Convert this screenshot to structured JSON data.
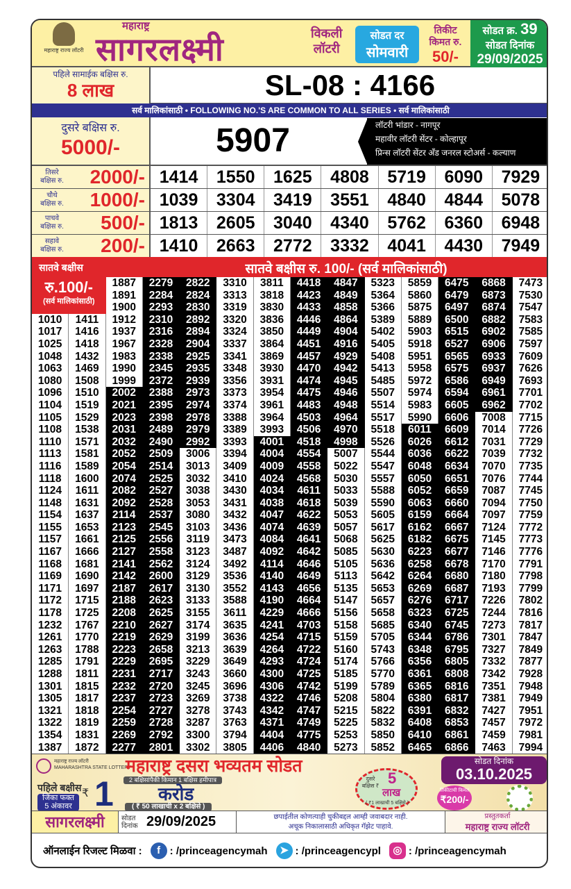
{
  "header": {
    "logo_caption": "महाराष्ट्र राज्य लॉटरी",
    "state": "महाराष्ट्र",
    "title": "सागरलक्ष्मी",
    "weekly_1": "विकली",
    "weekly_2": "लॉटरी",
    "draw_day_label": "सोडत दर",
    "draw_day": "सोमवारी",
    "ticket_label_1": "तिकीट",
    "ticket_label_2": "किमत रु.",
    "ticket_price": "50/-",
    "draw_no_label": "सोडत क्र.",
    "draw_no": "39",
    "draw_date_label": "सोडत दिनांक",
    "draw_date": "29/09/2025"
  },
  "first_prize": {
    "label": "पहिले सामाईक बक्षिस रु.",
    "amount": "8 लाख",
    "number": "SL-08 : 4166"
  },
  "common_band": "सर्व मालिकांसाठी  •  FOLLOWING NO.'S ARE COMMON TO ALL SERIES  •  सर्व मालिकांसाठी",
  "second_prize": {
    "label": "दुसरे बक्षिस रु.",
    "amount": "5000/-",
    "number": "5907",
    "sellers": [
      "लॉटरी भांडार - नागपूर",
      "महावीर लॉटरी सेंटर - कोल्हापूर",
      "प्रिन्स लॉटरी सेंटर अँड जनरल स्टोअर्स - कल्याण"
    ]
  },
  "prizes": [
    {
      "label_1": "तिसरे",
      "label_2": "बक्षिस रु.",
      "amount": "2000/-",
      "numbers": [
        "1414",
        "1550",
        "1625",
        "4808",
        "5719",
        "6090",
        "7929"
      ]
    },
    {
      "label_1": "चौथे",
      "label_2": "बक्षिस रु.",
      "amount": "1000/-",
      "numbers": [
        "1039",
        "3304",
        "3419",
        "3551",
        "4840",
        "4844",
        "5078"
      ]
    },
    {
      "label_1": "पाचवे",
      "label_2": "बक्षिस रु.",
      "amount": "500/-",
      "numbers": [
        "1813",
        "2605",
        "3040",
        "4340",
        "5762",
        "6360",
        "6948"
      ]
    },
    {
      "label_1": "सहावे",
      "label_2": "बक्षिस रु.",
      "amount": "200/-",
      "numbers": [
        "1410",
        "2663",
        "2772",
        "3332",
        "4041",
        "4430",
        "7949"
      ]
    }
  ],
  "seventh_prize": {
    "left_label": "सातवे बक्षीस",
    "heading": "सातवे बक्षीस रु. 100/-  (सर्व मालिकांसाठी)",
    "box_amount": "रु.100/-",
    "box_note": "(सर्व मालिकांसाठी)",
    "columns": [
      [
        "1010",
        "1017",
        "1025",
        "1048",
        "1063",
        "1080",
        "1096",
        "1104",
        "1105",
        "1108",
        "1110",
        "1113",
        "1116",
        "1118",
        "1124",
        "1148",
        "1154",
        "1155",
        "1157",
        "1167",
        "1168",
        "1169",
        "1171",
        "1172",
        "1178",
        "1232",
        "1261",
        "1263",
        "1285",
        "1288",
        "1301",
        "1305",
        "1321",
        "1322",
        "1354",
        "1387"
      ],
      [
        "1411",
        "1416",
        "1418",
        "1432",
        "1469",
        "1508",
        "1510",
        "1519",
        "1529",
        "1538",
        "1571",
        "1581",
        "1589",
        "1600",
        "1611",
        "1631",
        "1637",
        "1653",
        "1661",
        "1666",
        "1681",
        "1690",
        "1697",
        "1715",
        "1725",
        "1767",
        "1770",
        "1788",
        "1791",
        "1811",
        "1815",
        "1817",
        "1818",
        "1819",
        "1831",
        "1872"
      ],
      [
        "1887",
        "1891",
        "1900",
        "1912",
        "1937",
        "1967",
        "1983",
        "1990",
        "1999",
        "2002",
        "2021",
        "2023",
        "2031",
        "2032",
        "2052",
        "2054",
        "2074",
        "2082",
        "2092",
        "2114",
        "2123",
        "2125",
        "2127",
        "2141",
        "2142",
        "2187",
        "2188",
        "2208",
        "2210",
        "2219",
        "2223",
        "2229",
        "2231",
        "2232",
        "2237",
        "2254",
        "2259",
        "2269",
        "2277"
      ],
      [
        "2279",
        "2284",
        "2293",
        "2310",
        "2316",
        "2328",
        "2338",
        "2345",
        "2372",
        "2388",
        "2395",
        "2398",
        "2489",
        "2490",
        "2509",
        "2514",
        "2525",
        "2527",
        "2528",
        "2537",
        "2545",
        "2556",
        "2558",
        "2562",
        "2600",
        "2617",
        "2623",
        "2625",
        "2627",
        "2629",
        "2658",
        "2695",
        "2717",
        "2720",
        "2723",
        "2727",
        "2728",
        "2792",
        "2801"
      ],
      [
        "2822",
        "2824",
        "2830",
        "2892",
        "2894",
        "2904",
        "2925",
        "2935",
        "2939",
        "2973",
        "2974",
        "2978",
        "2979",
        "2992",
        "3006",
        "3013",
        "3032",
        "3038",
        "3053",
        "3080",
        "3103",
        "3119",
        "3123",
        "3124",
        "3129",
        "3130",
        "3133",
        "3155",
        "3174",
        "3199",
        "3213",
        "3229",
        "3243",
        "3245",
        "3269",
        "3278",
        "3287",
        "3300",
        "3302"
      ],
      [
        "3310",
        "3313",
        "3319",
        "3320",
        "3324",
        "3337",
        "3341",
        "3348",
        "3356",
        "3373",
        "3374",
        "3388",
        "3389",
        "3393",
        "3394",
        "3409",
        "3410",
        "3430",
        "3431",
        "3432",
        "3436",
        "3473",
        "3487",
        "3492",
        "3536",
        "3552",
        "3588",
        "3611",
        "3635",
        "3636",
        "3639",
        "3649",
        "3660",
        "3696",
        "3738",
        "3743",
        "3763",
        "3794",
        "3805"
      ],
      [
        "3811",
        "3818",
        "3830",
        "3836",
        "3850",
        "3864",
        "3869",
        "3930",
        "3931",
        "3954",
        "3961",
        "3964",
        "3993",
        "4001",
        "4004",
        "4009",
        "4024",
        "4034",
        "4038",
        "4047",
        "4074",
        "4084",
        "4092",
        "4114",
        "4140",
        "4143",
        "4190",
        "4229",
        "4241",
        "4254",
        "4264",
        "4293",
        "4300",
        "4306",
        "4322",
        "4342",
        "4371",
        "4404",
        "4406"
      ],
      [
        "4418",
        "4423",
        "4433",
        "4446",
        "4449",
        "4451",
        "4457",
        "4470",
        "4474",
        "4475",
        "4483",
        "4503",
        "4506",
        "4518",
        "4554",
        "4558",
        "4568",
        "4611",
        "4618",
        "4622",
        "4639",
        "4641",
        "4642",
        "4646",
        "4649",
        "4656",
        "4664",
        "4666",
        "4703",
        "4715",
        "4722",
        "4724",
        "4725",
        "4742",
        "4746",
        "4747",
        "4749",
        "4775",
        "4840"
      ],
      [
        "4847",
        "4849",
        "4858",
        "4864",
        "4904",
        "4916",
        "4929",
        "4942",
        "4945",
        "4946",
        "4948",
        "4964",
        "4970",
        "4998",
        "5007",
        "5022",
        "5030",
        "5033",
        "5039",
        "5053",
        "5057",
        "5068",
        "5085",
        "5105",
        "5113",
        "5135",
        "5147",
        "5156",
        "5158",
        "5159",
        "5160",
        "5174",
        "5185",
        "5199",
        "5208",
        "5215",
        "5225",
        "5253",
        "5273"
      ],
      [
        "5323",
        "5364",
        "5366",
        "5389",
        "5402",
        "5405",
        "5408",
        "5413",
        "5485",
        "5507",
        "5514",
        "5517",
        "5518",
        "5526",
        "5544",
        "5547",
        "5557",
        "5588",
        "5590",
        "5605",
        "5617",
        "5625",
        "5630",
        "5636",
        "5642",
        "5653",
        "5657",
        "5658",
        "5685",
        "5705",
        "5743",
        "5766",
        "5770",
        "5789",
        "5804",
        "5822",
        "5832",
        "5850",
        "5852"
      ],
      [
        "5859",
        "5860",
        "5875",
        "5889",
        "5903",
        "5918",
        "5951",
        "5958",
        "5972",
        "5974",
        "5983",
        "5990",
        "6011",
        "6026",
        "6036",
        "6048",
        "6050",
        "6052",
        "6063",
        "6159",
        "6162",
        "6182",
        "6223",
        "6258",
        "6264",
        "6269",
        "6276",
        "6323",
        "6340",
        "6344",
        "6348",
        "6356",
        "6361",
        "6365",
        "6380",
        "6391",
        "6408",
        "6410",
        "6465"
      ],
      [
        "6475",
        "6479",
        "6497",
        "6500",
        "6515",
        "6527",
        "6565",
        "6575",
        "6586",
        "6594",
        "6605",
        "6606",
        "6609",
        "6612",
        "6622",
        "6634",
        "6651",
        "6659",
        "6660",
        "6664",
        "6667",
        "6675",
        "6677",
        "6678",
        "6680",
        "6687",
        "6717",
        "6725",
        "6745",
        "6786",
        "6795",
        "6805",
        "6808",
        "6816",
        "6817",
        "6832",
        "6853",
        "6861",
        "6866"
      ],
      [
        "6868",
        "6873",
        "6874",
        "6882",
        "6902",
        "6906",
        "6933",
        "6937",
        "6949",
        "6961",
        "6962",
        "7008",
        "7014",
        "7031",
        "7039",
        "7070",
        "7076",
        "7087",
        "7094",
        "7097",
        "7124",
        "7145",
        "7146",
        "7170",
        "7180",
        "7193",
        "7226",
        "7244",
        "7273",
        "7301",
        "7327",
        "7332",
        "7342",
        "7351",
        "7381",
        "7427",
        "7457",
        "7459",
        "7463"
      ],
      [
        "7473",
        "7530",
        "7547",
        "7583",
        "7585",
        "7597",
        "7609",
        "7626",
        "7693",
        "7701",
        "7702",
        "7715",
        "7726",
        "7729",
        "7732",
        "7735",
        "7744",
        "7745",
        "7750",
        "7759",
        "7772",
        "7773",
        "7776",
        "7791",
        "7798",
        "7799",
        "7802",
        "7816",
        "7817",
        "7847",
        "7849",
        "7877",
        "7928",
        "7948",
        "7949",
        "7951",
        "7972",
        "7981",
        "7994"
      ]
    ]
  },
  "promo": {
    "org": "महाराष्ट्र राज्य लॉटरी",
    "org_en": "MAHARASHTRA STATE LOTTERY",
    "title": "महाराष्ट्र दसरा भव्यतम सोडत",
    "date_label": "सोडत दिनांक",
    "date": "03.10.2025",
    "first_label": "पहिले बक्षीस",
    "win_note_1": "जिंका फक्त",
    "win_note_2": "5 अंकावर",
    "rupee": "₹",
    "first_amount_num": "1",
    "first_amount_word": "करोड",
    "guarantee": "2 बक्षिसांपैकी किमान 1 बक्षिस हमीपात्र",
    "first_split": "( ₹ 50 लाखाची x 2 बक्षिसे )",
    "second_label": "दुसरे बक्षिस ₹",
    "second_amount_num": "5",
    "second_amount_word": "लाख",
    "second_split": "( ₹1 लाखाची 5 बक्षिसे )",
    "ticket_label": "तिकीटाची किमत",
    "ticket_price": "₹200/-"
  },
  "footer": {
    "brand": "सागरलक्ष्मी",
    "date_label_1": "सोडत",
    "date_label_2": "दिनांक",
    "date": "29/09/2025",
    "disclaimer_1": "छपाईतील कोणत्याही चुकीबद्दल आम्ही जवाबदार नाही.",
    "disclaimer_2": "अचूक निकालासाठी अधिकृत गॅझेट पाहावे.",
    "presenter_label": "प्रस्तुतकर्ता",
    "presenter": "महाराष्ट्र राज्य लॉटरी",
    "online_label": "ऑनलाईन रिजल्ट मिळवा :",
    "facebook": ": /princeagencymah",
    "telegram": ": /princeagencypl",
    "instagram": ": /princeagencymah"
  },
  "colors": {
    "brand": "#a0267f",
    "red": "#e0262b",
    "navy": "#2e3190",
    "green": "#1d9a4c",
    "sky": "#28a8e0",
    "header_bg": "#fdf0a4"
  }
}
